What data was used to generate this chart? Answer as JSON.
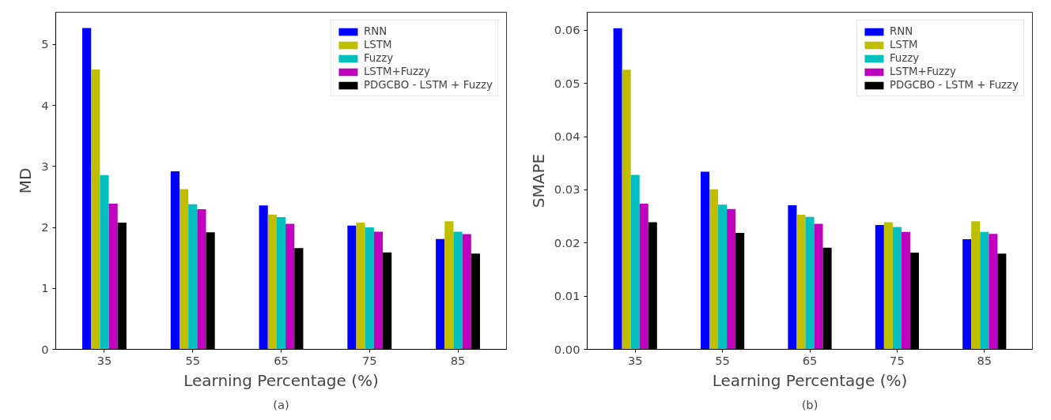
{
  "chart_data": [
    {
      "type": "bar",
      "categories": [
        "35",
        "55",
        "65",
        "75",
        "85"
      ],
      "xlabel": "Learning Percentage (%)",
      "ylabel": "MD",
      "ylim": [
        0,
        5.53
      ],
      "yticks": [
        0,
        1,
        2,
        3,
        4,
        5
      ],
      "grid": false,
      "legend": "top right",
      "annotations": [
        "(a)"
      ],
      "series": [
        {
          "name": "RNN",
          "color": "#0000ff",
          "values": [
            5.27,
            2.92,
            2.36,
            2.03,
            1.81
          ]
        },
        {
          "name": "LSTM",
          "color": "#bfbf00",
          "values": [
            4.59,
            2.63,
            2.21,
            2.08,
            2.1
          ]
        },
        {
          "name": "Fuzzy",
          "color": "#00bfbf",
          "values": [
            2.86,
            2.38,
            2.17,
            2.0,
            1.93
          ]
        },
        {
          "name": "LSTM+Fuzzy",
          "color": "#bf00bf",
          "values": [
            2.39,
            2.3,
            2.06,
            1.93,
            1.89
          ]
        },
        {
          "name": "PDGCBO - LSTM + Fuzzy",
          "color": "#000000",
          "values": [
            2.08,
            1.92,
            1.66,
            1.59,
            1.57
          ]
        }
      ]
    },
    {
      "type": "bar",
      "categories": [
        "35",
        "55",
        "65",
        "75",
        "85"
      ],
      "xlabel": "Learning Percentage (%)",
      "ylabel": "SMAPE",
      "ylim": [
        0,
        0.0634
      ],
      "yticks": [
        {
          "value": 0,
          "label": "0.00"
        },
        0.01,
        0.02,
        0.03,
        0.04,
        0.05,
        0.06
      ],
      "grid": false,
      "legend": "top right",
      "annotations": [
        "(b)"
      ],
      "series": [
        {
          "name": "RNN",
          "color": "#0000ff",
          "values": [
            0.0604,
            0.0334,
            0.0271,
            0.0234,
            0.0207
          ]
        },
        {
          "name": "LSTM",
          "color": "#bfbf00",
          "values": [
            0.0526,
            0.0301,
            0.0253,
            0.0239,
            0.0241
          ]
        },
        {
          "name": "Fuzzy",
          "color": "#00bfbf",
          "values": [
            0.0328,
            0.0272,
            0.0249,
            0.023,
            0.0221
          ]
        },
        {
          "name": "LSTM+Fuzzy",
          "color": "#bf00bf",
          "values": [
            0.0274,
            0.0264,
            0.0236,
            0.0221,
            0.0217
          ]
        },
        {
          "name": "PDGCBO - LSTM + Fuzzy",
          "color": "#000000",
          "values": [
            0.0239,
            0.0219,
            0.0191,
            0.0182,
            0.018
          ]
        }
      ]
    }
  ]
}
